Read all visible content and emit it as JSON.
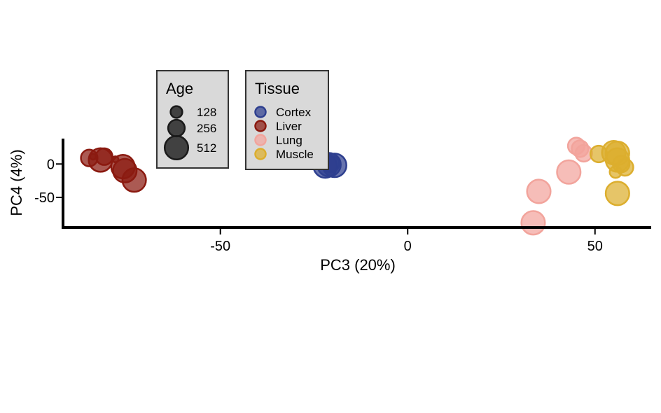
{
  "chart_data": {
    "type": "scatter",
    "xlabel": "PC3 (20%)",
    "ylabel": "PC4 (4%)",
    "xlim": [
      -92,
      65
    ],
    "ylim": [
      -95,
      38
    ],
    "xticks": [
      -50,
      0,
      50
    ],
    "yticks": [
      0,
      -50
    ],
    "grid": false,
    "colors": {
      "Cortex": "#2e3f8f",
      "Liver": "#8b1a10",
      "Lung": "#f2a49c",
      "Muscle": "#dcae2e"
    },
    "legend_age": {
      "title": "Age",
      "entries": [
        {
          "label": "128",
          "age": 128
        },
        {
          "label": "256",
          "age": 256
        },
        {
          "label": "512",
          "age": 512
        }
      ]
    },
    "legend_tissue": {
      "title": "Tissue",
      "entries": [
        "Cortex",
        "Liver",
        "Lung",
        "Muscle"
      ]
    },
    "series": [
      {
        "name": "Cortex",
        "points": [
          {
            "x": -22,
            "y": -3,
            "age": 512
          },
          {
            "x": -21,
            "y": -1,
            "age": 512
          },
          {
            "x": -19.5,
            "y": -2,
            "age": 512
          },
          {
            "x": -20.5,
            "y": 0,
            "age": 256
          }
        ]
      },
      {
        "name": "Liver",
        "points": [
          {
            "x": -85,
            "y": 9,
            "age": 256
          },
          {
            "x": -84,
            "y": 11,
            "age": 32
          },
          {
            "x": -82,
            "y": 6,
            "age": 512
          },
          {
            "x": -81,
            "y": 11,
            "age": 256
          },
          {
            "x": -78,
            "y": 7,
            "age": 32
          },
          {
            "x": -76,
            "y": -4,
            "age": 512
          },
          {
            "x": -75.5,
            "y": -10,
            "age": 512
          },
          {
            "x": -73,
            "y": -24,
            "age": 512
          }
        ]
      },
      {
        "name": "Lung",
        "points": [
          {
            "x": 45,
            "y": 27,
            "age": 256
          },
          {
            "x": 46,
            "y": 23,
            "age": 256
          },
          {
            "x": 47,
            "y": 16,
            "age": 256
          },
          {
            "x": 43,
            "y": -12,
            "age": 512
          },
          {
            "x": 35,
            "y": -41,
            "age": 512
          },
          {
            "x": 33.5,
            "y": -88,
            "age": 512
          }
        ]
      },
      {
        "name": "Muscle",
        "points": [
          {
            "x": 51,
            "y": 15,
            "age": 256
          },
          {
            "x": 55,
            "y": 17,
            "age": 512
          },
          {
            "x": 56,
            "y": 16,
            "age": 512
          },
          {
            "x": 56,
            "y": 6,
            "age": 512
          },
          {
            "x": 57,
            "y": 0,
            "age": 256
          },
          {
            "x": 58,
            "y": -5,
            "age": 256
          },
          {
            "x": 55.5,
            "y": -12,
            "age": 128
          },
          {
            "x": 56,
            "y": -44,
            "age": 512
          }
        ]
      }
    ]
  }
}
